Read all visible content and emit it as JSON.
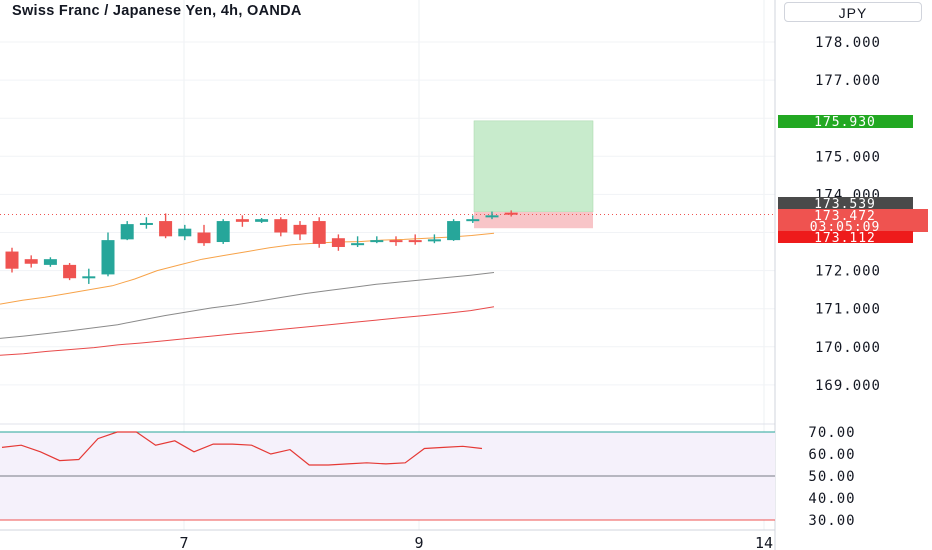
{
  "header": {
    "title": "Swiss Franc / Japanese Yen, 4h, OANDA",
    "currency": "JPY"
  },
  "price_badges": {
    "target": "175.930",
    "entry": "173.539",
    "last": "173.472",
    "countdown": "03:05:09",
    "stop": "173.112"
  },
  "colors": {
    "up": "#26a69a",
    "down": "#ef5350",
    "ema_fast": "#f7a349",
    "ema_mid": "#8a8a8a",
    "ema_slow": "#e84a4a",
    "rsi_line": "#e53935",
    "profit_zone": "#c8ebcc",
    "loss_zone": "#f8c5c8"
  },
  "chart_data": [
    {
      "type": "candlestick",
      "title": "Swiss Franc / Japanese Yen, 4h, OANDA",
      "y_axis_ticks": [
        178.0,
        177.0,
        175.0,
        174.0,
        172.0,
        171.0,
        170.0,
        169.0
      ],
      "y_axis_tick_labels": [
        "178.000",
        "177.000",
        "175.000",
        "174.000",
        "172.000",
        "171.000",
        "170.000",
        "169.000"
      ],
      "x_axis_tick_labels": [
        "7",
        "9",
        "14"
      ],
      "candles": [
        {
          "o": 172.5,
          "h": 172.6,
          "c": 172.05,
          "l": 171.95
        },
        {
          "o": 172.3,
          "h": 172.4,
          "c": 172.18,
          "l": 172.08
        },
        {
          "o": 172.15,
          "h": 172.35,
          "c": 172.3,
          "l": 172.1
        },
        {
          "o": 172.15,
          "h": 172.2,
          "c": 171.8,
          "l": 171.75
        },
        {
          "o": 171.85,
          "h": 172.05,
          "c": 171.85,
          "l": 171.65
        },
        {
          "o": 171.9,
          "h": 173.0,
          "c": 172.8,
          "l": 171.85
        },
        {
          "o": 172.82,
          "h": 173.3,
          "c": 173.22,
          "l": 172.8
        },
        {
          "o": 173.2,
          "h": 173.4,
          "c": 173.25,
          "l": 173.1
        },
        {
          "o": 173.3,
          "h": 173.5,
          "c": 172.9,
          "l": 172.85
        },
        {
          "o": 172.9,
          "h": 173.2,
          "c": 173.1,
          "l": 172.8
        },
        {
          "o": 173.0,
          "h": 173.2,
          "c": 172.72,
          "l": 172.65
        },
        {
          "o": 172.75,
          "h": 173.35,
          "c": 173.3,
          "l": 172.7
        },
        {
          "o": 173.35,
          "h": 173.45,
          "c": 173.28,
          "l": 173.15
        },
        {
          "o": 173.28,
          "h": 173.38,
          "c": 173.35,
          "l": 173.25
        },
        {
          "o": 173.35,
          "h": 173.4,
          "c": 173.0,
          "l": 172.9
        },
        {
          "o": 173.2,
          "h": 173.3,
          "c": 172.95,
          "l": 172.8
        },
        {
          "o": 173.3,
          "h": 173.4,
          "c": 172.7,
          "l": 172.6
        },
        {
          "o": 172.85,
          "h": 172.95,
          "c": 172.62,
          "l": 172.52
        },
        {
          "o": 172.68,
          "h": 172.9,
          "c": 172.72,
          "l": 172.62
        },
        {
          "o": 172.75,
          "h": 172.9,
          "c": 172.8,
          "l": 172.72
        },
        {
          "o": 172.8,
          "h": 172.9,
          "c": 172.76,
          "l": 172.65
        },
        {
          "o": 172.8,
          "h": 172.95,
          "c": 172.78,
          "l": 172.68
        },
        {
          "o": 172.78,
          "h": 172.95,
          "c": 172.82,
          "l": 172.72
        },
        {
          "o": 172.8,
          "h": 173.35,
          "c": 173.3,
          "l": 172.78
        },
        {
          "o": 173.3,
          "h": 173.45,
          "c": 173.35,
          "l": 173.25
        },
        {
          "o": 173.4,
          "h": 173.55,
          "c": 173.45,
          "l": 173.35
        },
        {
          "o": 173.52,
          "h": 173.58,
          "c": 173.47,
          "l": 173.42
        }
      ],
      "series": [
        {
          "values": [
            171.12,
            171.22,
            171.3,
            171.4,
            171.5,
            171.6,
            171.78,
            172.0,
            172.15,
            172.3,
            172.4,
            172.5,
            172.6,
            172.68,
            172.72,
            172.75,
            172.76,
            172.8,
            172.82,
            172.85,
            172.88,
            172.92,
            172.98
          ]
        },
        {
          "values": [
            170.22,
            170.28,
            170.35,
            170.42,
            170.5,
            170.58,
            170.7,
            170.82,
            170.92,
            171.02,
            171.1,
            171.2,
            171.3,
            171.4,
            171.48,
            171.56,
            171.64,
            171.7,
            171.76,
            171.82,
            171.88,
            171.95
          ]
        },
        {
          "values": [
            169.78,
            169.82,
            169.88,
            169.93,
            169.98,
            170.05,
            170.1,
            170.16,
            170.22,
            170.28,
            170.34,
            170.4,
            170.46,
            170.52,
            170.58,
            170.64,
            170.7,
            170.76,
            170.82,
            170.88,
            170.95,
            171.05
          ]
        }
      ],
      "position": {
        "target": 175.93,
        "entry": 173.539,
        "stop": 173.112
      }
    },
    {
      "type": "line",
      "y_axis_ticks": [
        70,
        60,
        50,
        40,
        30
      ],
      "y_axis_tick_labels": [
        "70.00",
        "60.00",
        "50.00",
        "40.00",
        "30.00"
      ],
      "levels": [
        70,
        50,
        30
      ],
      "rsi": [
        63,
        64,
        61,
        57,
        57.5,
        67,
        70,
        70,
        64,
        66,
        61,
        64.5,
        64.5,
        64,
        60,
        62,
        55,
        55,
        55.5,
        56,
        55.5,
        56,
        62.5,
        63,
        63.5,
        62.5
      ]
    }
  ]
}
